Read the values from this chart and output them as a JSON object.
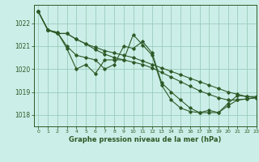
{
  "title": "Graphe pression niveau de la mer (hPa)",
  "bg_color": "#cceee8",
  "grid_color": "#99ccbb",
  "line_color": "#2d5a27",
  "xlim": [
    -0.5,
    23
  ],
  "ylim": [
    1017.5,
    1022.8
  ],
  "yticks": [
    1018,
    1019,
    1020,
    1021,
    1022
  ],
  "xticks": [
    0,
    1,
    2,
    3,
    4,
    5,
    6,
    7,
    8,
    9,
    10,
    11,
    12,
    13,
    14,
    15,
    16,
    17,
    18,
    19,
    20,
    21,
    22,
    23
  ],
  "series": [
    [
      1022.5,
      1021.7,
      1021.6,
      1020.9,
      1020.0,
      1020.2,
      1019.8,
      1020.4,
      1020.4,
      1020.4,
      1021.5,
      1021.05,
      1020.6,
      1019.3,
      1018.65,
      1018.3,
      1018.15,
      1018.1,
      1018.1,
      1018.1,
      1018.4,
      1018.65,
      1018.7,
      1018.75
    ],
    [
      1022.5,
      1021.7,
      1021.6,
      1021.0,
      1020.6,
      1020.5,
      1020.4,
      1020.0,
      1020.2,
      1021.0,
      1020.9,
      1021.2,
      1020.7,
      1019.4,
      1019.0,
      1018.65,
      1018.3,
      1018.1,
      1018.2,
      1018.1,
      1018.5,
      1018.85,
      1018.8,
      1018.8
    ],
    [
      1022.5,
      1021.7,
      1021.55,
      1021.55,
      1021.3,
      1021.1,
      1020.95,
      1020.8,
      1020.7,
      1020.6,
      1020.5,
      1020.35,
      1020.2,
      1020.05,
      1019.9,
      1019.75,
      1019.6,
      1019.45,
      1019.3,
      1019.15,
      1019.0,
      1018.9,
      1018.8,
      1018.75
    ],
    [
      1022.5,
      1021.7,
      1021.55,
      1021.55,
      1021.3,
      1021.1,
      1020.85,
      1020.65,
      1020.5,
      1020.4,
      1020.3,
      1020.2,
      1020.05,
      1019.85,
      1019.65,
      1019.45,
      1019.25,
      1019.05,
      1018.9,
      1018.75,
      1018.65,
      1018.65,
      1018.7,
      1018.75
    ]
  ]
}
